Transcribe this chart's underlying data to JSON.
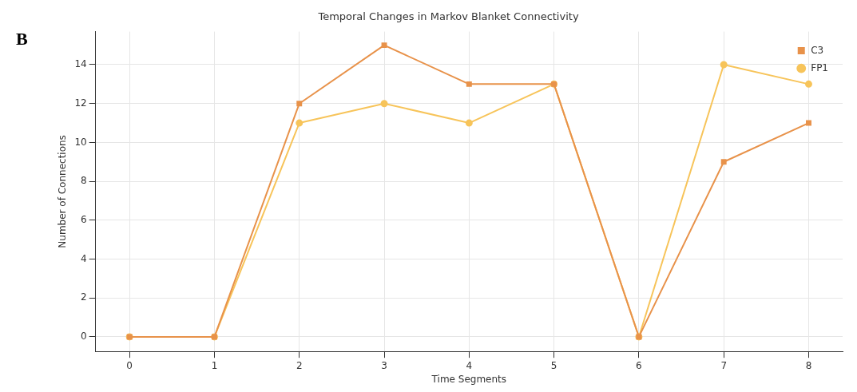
{
  "chart_data": {
    "type": "line",
    "title": "Temporal Changes in Markov Blanket Connectivity",
    "xlabel": "Time Segments",
    "ylabel": "Number of Connections",
    "annotations": [
      "B"
    ],
    "x": [
      0,
      1,
      2,
      3,
      4,
      5,
      6,
      7,
      8
    ],
    "series": [
      {
        "name": "FP1",
        "color": "#f7c45a",
        "marker": "circle",
        "values": [
          0,
          0,
          11,
          12,
          11,
          13,
          0,
          14,
          13
        ]
      },
      {
        "name": "C3",
        "color": "#e8924a",
        "marker": "square",
        "values": [
          0,
          0,
          12,
          15,
          13,
          13,
          0,
          9,
          11
        ]
      }
    ],
    "xlim": [
      -0.4,
      8.4
    ],
    "xticks": [
      0,
      1,
      2,
      3,
      4,
      5,
      6,
      7,
      8
    ],
    "ylim": [
      -0.75,
      15.7
    ],
    "yticks": [
      0,
      2,
      4,
      6,
      8,
      10,
      12,
      14
    ],
    "grid": true,
    "legend": "top right",
    "line_style": "solid"
  }
}
